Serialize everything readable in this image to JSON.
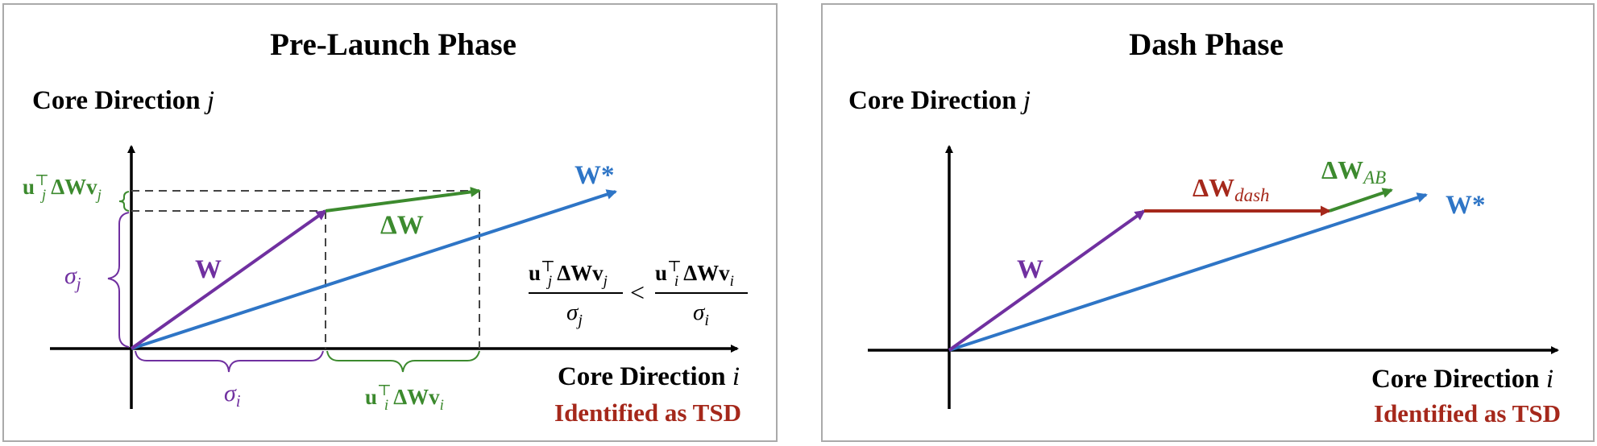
{
  "panels": [
    {
      "title": "Pre-Launch Phase",
      "axis_y_label": "Core Direction ",
      "axis_y_var": "j",
      "axis_x_label": "Core Direction ",
      "axis_x_var": "i",
      "footer": "Identified as TSD",
      "vectors": {
        "W": "W",
        "W_star": "W*",
        "delta_W": "ΔW"
      },
      "sigma": "σ",
      "sub_i": "i",
      "sub_j": "j",
      "u": "u",
      "T": "⊤",
      "dW": "ΔW",
      "v": "v",
      "lt": "<"
    },
    {
      "title": "Dash Phase",
      "axis_y_label": "Core Direction ",
      "axis_y_var": "j",
      "axis_x_label": "Core Direction ",
      "axis_x_var": "i",
      "footer": "Identified as TSD",
      "vectors": {
        "W": "W",
        "W_star": "W*",
        "delta_W": "ΔW",
        "dash_sub": "dash",
        "ab_sub": "AB"
      }
    }
  ],
  "colors": {
    "W": "#7030a0",
    "W_star": "#2e75c6",
    "delta": "#3c8a2e",
    "dash": "#a5281b",
    "footer": "#a5281b"
  }
}
